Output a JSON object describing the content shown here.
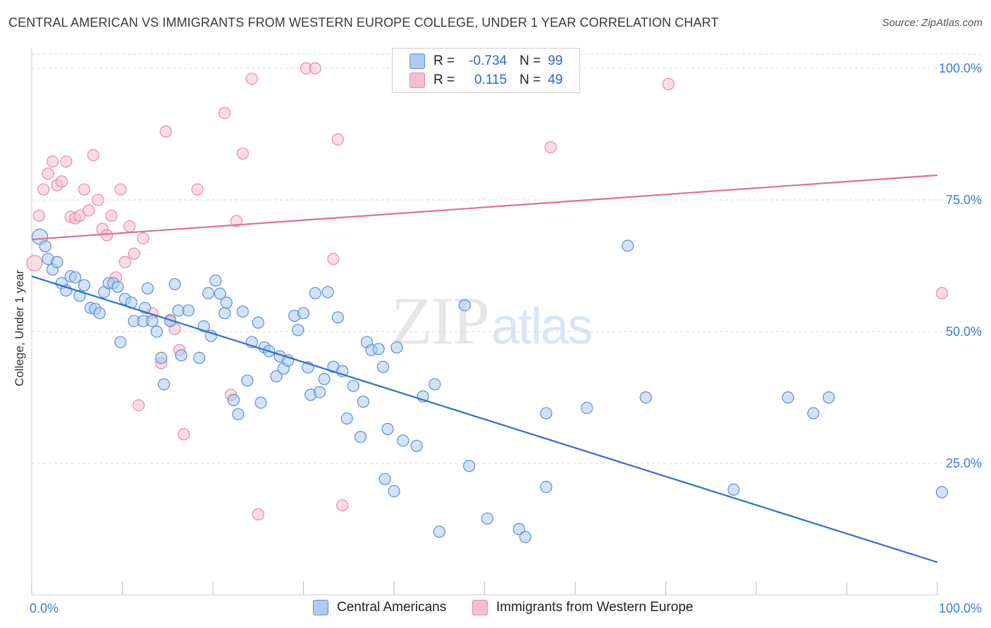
{
  "header": {
    "title": "CENTRAL AMERICAN VS IMMIGRANTS FROM WESTERN EUROPE COLLEGE, UNDER 1 YEAR CORRELATION CHART",
    "source": "Source: ZipAtlas.com"
  },
  "watermark": {
    "zip": "ZIP",
    "atlas": "atlas"
  },
  "legend": {
    "rows": [
      {
        "r_label": "R =",
        "r_value": "-0.734",
        "n_label": "N =",
        "n_value": "99",
        "color": "#aecbf0"
      },
      {
        "r_label": "R =",
        "r_value": "0.115",
        "n_label": "N =",
        "n_value": "49",
        "color": "#f5bfd0"
      }
    ]
  },
  "colors": {
    "blue_fill": "#aecbf0",
    "blue_stroke": "#5b8fd6",
    "blue_line": "#2b6fd0",
    "pink_fill": "#f5bfd0",
    "pink_stroke": "#e88aa8",
    "pink_line": "#e06f99",
    "tick_text": "#3d7bd6",
    "grid": "#d9d9d9"
  },
  "chart_data": {
    "type": "scatter",
    "title": "CENTRAL AMERICAN VS IMMIGRANTS FROM WESTERN EUROPE COLLEGE, UNDER 1 YEAR CORRELATION CHART",
    "xlabel": "",
    "ylabel": "College, Under 1 year",
    "xlim": [
      0,
      100
    ],
    "ylim": [
      0,
      102
    ],
    "x_tick_labels": [
      "0.0%",
      "100.0%"
    ],
    "y_ticks": [
      25,
      50,
      75,
      100
    ],
    "y_tick_labels": [
      "25.0%",
      "50.0%",
      "75.0%",
      "100.0%"
    ],
    "grid": "horizontal dashed",
    "legend_position": "top-center",
    "series": [
      {
        "name": "Central Americans",
        "color": "#aecbf0",
        "r": -0.734,
        "n": 99,
        "trend": {
          "x": [
            0,
            100
          ],
          "y": [
            60.5,
            6.2
          ]
        },
        "points": [
          [
            0.9,
            68.0
          ],
          [
            1.5,
            66.2
          ],
          [
            1.8,
            63.8
          ],
          [
            2.3,
            61.8
          ],
          [
            2.8,
            63.2
          ],
          [
            3.3,
            59.2
          ],
          [
            3.8,
            57.8
          ],
          [
            4.3,
            60.5
          ],
          [
            4.8,
            60.3
          ],
          [
            5.3,
            56.8
          ],
          [
            5.8,
            58.8
          ],
          [
            6.5,
            54.5
          ],
          [
            7.0,
            54.3
          ],
          [
            7.5,
            53.5
          ],
          [
            8.0,
            57.5
          ],
          [
            8.5,
            59.2
          ],
          [
            9.0,
            59.2
          ],
          [
            9.5,
            58.5
          ],
          [
            9.8,
            48.0
          ],
          [
            10.3,
            56.2
          ],
          [
            11.0,
            55.5
          ],
          [
            11.3,
            52.0
          ],
          [
            12.3,
            52.0
          ],
          [
            12.5,
            54.5
          ],
          [
            12.8,
            58.2
          ],
          [
            13.3,
            52.0
          ],
          [
            13.8,
            50.0
          ],
          [
            14.3,
            45.0
          ],
          [
            14.6,
            40.0
          ],
          [
            15.3,
            52.0
          ],
          [
            15.8,
            59.0
          ],
          [
            16.2,
            54.0
          ],
          [
            16.5,
            45.5
          ],
          [
            17.3,
            54.0
          ],
          [
            18.5,
            45.0
          ],
          [
            19.0,
            51.0
          ],
          [
            19.5,
            57.3
          ],
          [
            19.8,
            49.2
          ],
          [
            20.3,
            59.7
          ],
          [
            20.8,
            57.2
          ],
          [
            21.3,
            53.5
          ],
          [
            21.5,
            55.5
          ],
          [
            22.3,
            37.0
          ],
          [
            22.8,
            34.3
          ],
          [
            23.3,
            53.8
          ],
          [
            23.8,
            40.7
          ],
          [
            24.3,
            48.0
          ],
          [
            25.0,
            51.7
          ],
          [
            25.3,
            36.5
          ],
          [
            25.7,
            47.0
          ],
          [
            26.2,
            46.3
          ],
          [
            27.0,
            41.5
          ],
          [
            27.4,
            45.3
          ],
          [
            27.8,
            43.0
          ],
          [
            28.3,
            44.5
          ],
          [
            29.0,
            53.0
          ],
          [
            29.4,
            50.3
          ],
          [
            30.0,
            53.5
          ],
          [
            30.5,
            43.2
          ],
          [
            30.8,
            38.0
          ],
          [
            31.3,
            57.3
          ],
          [
            31.8,
            38.5
          ],
          [
            32.3,
            41.0
          ],
          [
            32.7,
            57.5
          ],
          [
            33.3,
            43.3
          ],
          [
            33.8,
            52.7
          ],
          [
            34.3,
            42.5
          ],
          [
            34.8,
            33.5
          ],
          [
            35.5,
            39.7
          ],
          [
            36.3,
            30.0
          ],
          [
            36.6,
            36.7
          ],
          [
            37.0,
            48.0
          ],
          [
            37.5,
            46.5
          ],
          [
            38.3,
            46.7
          ],
          [
            38.8,
            43.3
          ],
          [
            39.0,
            22.0
          ],
          [
            39.3,
            31.5
          ],
          [
            40.0,
            19.7
          ],
          [
            40.3,
            47.0
          ],
          [
            41.0,
            29.3
          ],
          [
            42.5,
            28.3
          ],
          [
            43.2,
            37.7
          ],
          [
            44.5,
            40.0
          ],
          [
            45.0,
            12.0
          ],
          [
            47.8,
            55.0
          ],
          [
            48.3,
            24.5
          ],
          [
            50.3,
            14.5
          ],
          [
            53.8,
            12.5
          ],
          [
            54.5,
            11.0
          ],
          [
            56.8,
            20.5
          ],
          [
            56.8,
            34.5
          ],
          [
            61.3,
            35.5
          ],
          [
            65.8,
            66.3
          ],
          [
            67.8,
            37.5
          ],
          [
            77.5,
            20.0
          ],
          [
            83.5,
            37.5
          ],
          [
            86.3,
            34.5
          ],
          [
            88.0,
            37.5
          ],
          [
            100.5,
            19.5
          ]
        ]
      },
      {
        "name": "Immigrants from Western Europe",
        "color": "#f5bfd0",
        "r": 0.115,
        "n": 49,
        "trend": {
          "x": [
            0,
            100
          ],
          "y": [
            67.5,
            79.7
          ]
        },
        "points": [
          [
            0.3,
            63.0
          ],
          [
            0.8,
            72.0
          ],
          [
            1.3,
            77.0
          ],
          [
            1.8,
            80.0
          ],
          [
            2.3,
            82.3
          ],
          [
            2.8,
            77.8
          ],
          [
            3.3,
            78.5
          ],
          [
            3.8,
            82.3
          ],
          [
            4.3,
            71.8
          ],
          [
            4.8,
            71.5
          ],
          [
            5.3,
            72.0
          ],
          [
            5.8,
            77.0
          ],
          [
            6.3,
            73.0
          ],
          [
            6.8,
            83.5
          ],
          [
            7.3,
            75.0
          ],
          [
            7.8,
            69.5
          ],
          [
            8.3,
            68.3
          ],
          [
            8.8,
            72.0
          ],
          [
            9.3,
            60.3
          ],
          [
            9.8,
            77.0
          ],
          [
            10.3,
            63.2
          ],
          [
            10.8,
            70.0
          ],
          [
            11.3,
            64.8
          ],
          [
            11.8,
            36.0
          ],
          [
            12.3,
            67.7
          ],
          [
            13.3,
            53.5
          ],
          [
            14.3,
            44.0
          ],
          [
            14.8,
            88.0
          ],
          [
            15.3,
            52.2
          ],
          [
            15.8,
            50.5
          ],
          [
            16.3,
            46.5
          ],
          [
            16.8,
            30.5
          ],
          [
            18.3,
            77.0
          ],
          [
            21.3,
            91.5
          ],
          [
            22.0,
            38.0
          ],
          [
            22.6,
            71.0
          ],
          [
            23.3,
            83.8
          ],
          [
            24.3,
            98.0
          ],
          [
            25.0,
            15.3
          ],
          [
            30.3,
            100.0
          ],
          [
            31.3,
            100.0
          ],
          [
            33.3,
            63.8
          ],
          [
            33.8,
            86.5
          ],
          [
            34.3,
            17.0
          ],
          [
            47.8,
            100.0
          ],
          [
            53.3,
            100.0
          ],
          [
            57.3,
            85.0
          ],
          [
            70.3,
            97.0
          ],
          [
            100.5,
            57.3
          ]
        ]
      }
    ]
  }
}
